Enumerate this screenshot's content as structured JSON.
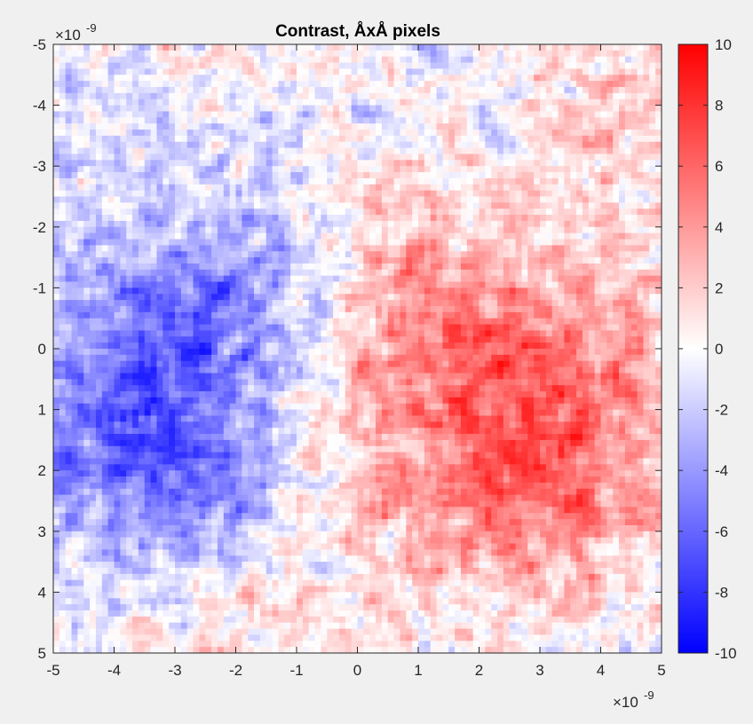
{
  "chart_data": {
    "type": "heatmap",
    "title": "Contrast, ÅxÅ pixels",
    "x_exponent_label": "×10",
    "x_exponent_power": "-9",
    "y_exponent_label": "×10",
    "y_exponent_power": "-9",
    "xlim": [
      -5e-09,
      5e-09
    ],
    "ylim": [
      -5e-09,
      5e-09
    ],
    "y_direction": "reverse",
    "x_ticks": [
      -5,
      -4,
      -3,
      -2,
      -1,
      0,
      1,
      2,
      3,
      4,
      5
    ],
    "x_tick_labels": [
      "-5",
      "-4",
      "-3",
      "-2",
      "-1",
      "0",
      "1",
      "2",
      "3",
      "4",
      "5"
    ],
    "y_ticks": [
      -5,
      -4,
      -3,
      -2,
      -1,
      0,
      1,
      2,
      3,
      4,
      5
    ],
    "y_tick_labels": [
      "-5",
      "-4",
      "-3",
      "-2",
      "-1",
      "0",
      "1",
      "2",
      "3",
      "4",
      "5"
    ],
    "colorbar": {
      "clim": [
        -10,
        10
      ],
      "ticks": [
        10,
        8,
        6,
        4,
        2,
        0,
        -2,
        -4,
        -6,
        -8,
        -10
      ],
      "tick_labels": [
        "10",
        "8",
        "6",
        "4",
        "2",
        "0",
        "-2",
        "-4",
        "-6",
        "-8",
        "-10"
      ],
      "colormap": [
        "#0000ff",
        "#ffffff",
        "#ff0000"
      ]
    },
    "grid_size": [
      100,
      100
    ],
    "field_description_features": {
      "negative_region": "left and upper-left (blue), strongest around y=0..2 near x=-4..-2",
      "positive_region": "right half (red), strongest around x=1.5..4, y=-0.5..0.5"
    }
  },
  "background_color": "#f0f0f0"
}
